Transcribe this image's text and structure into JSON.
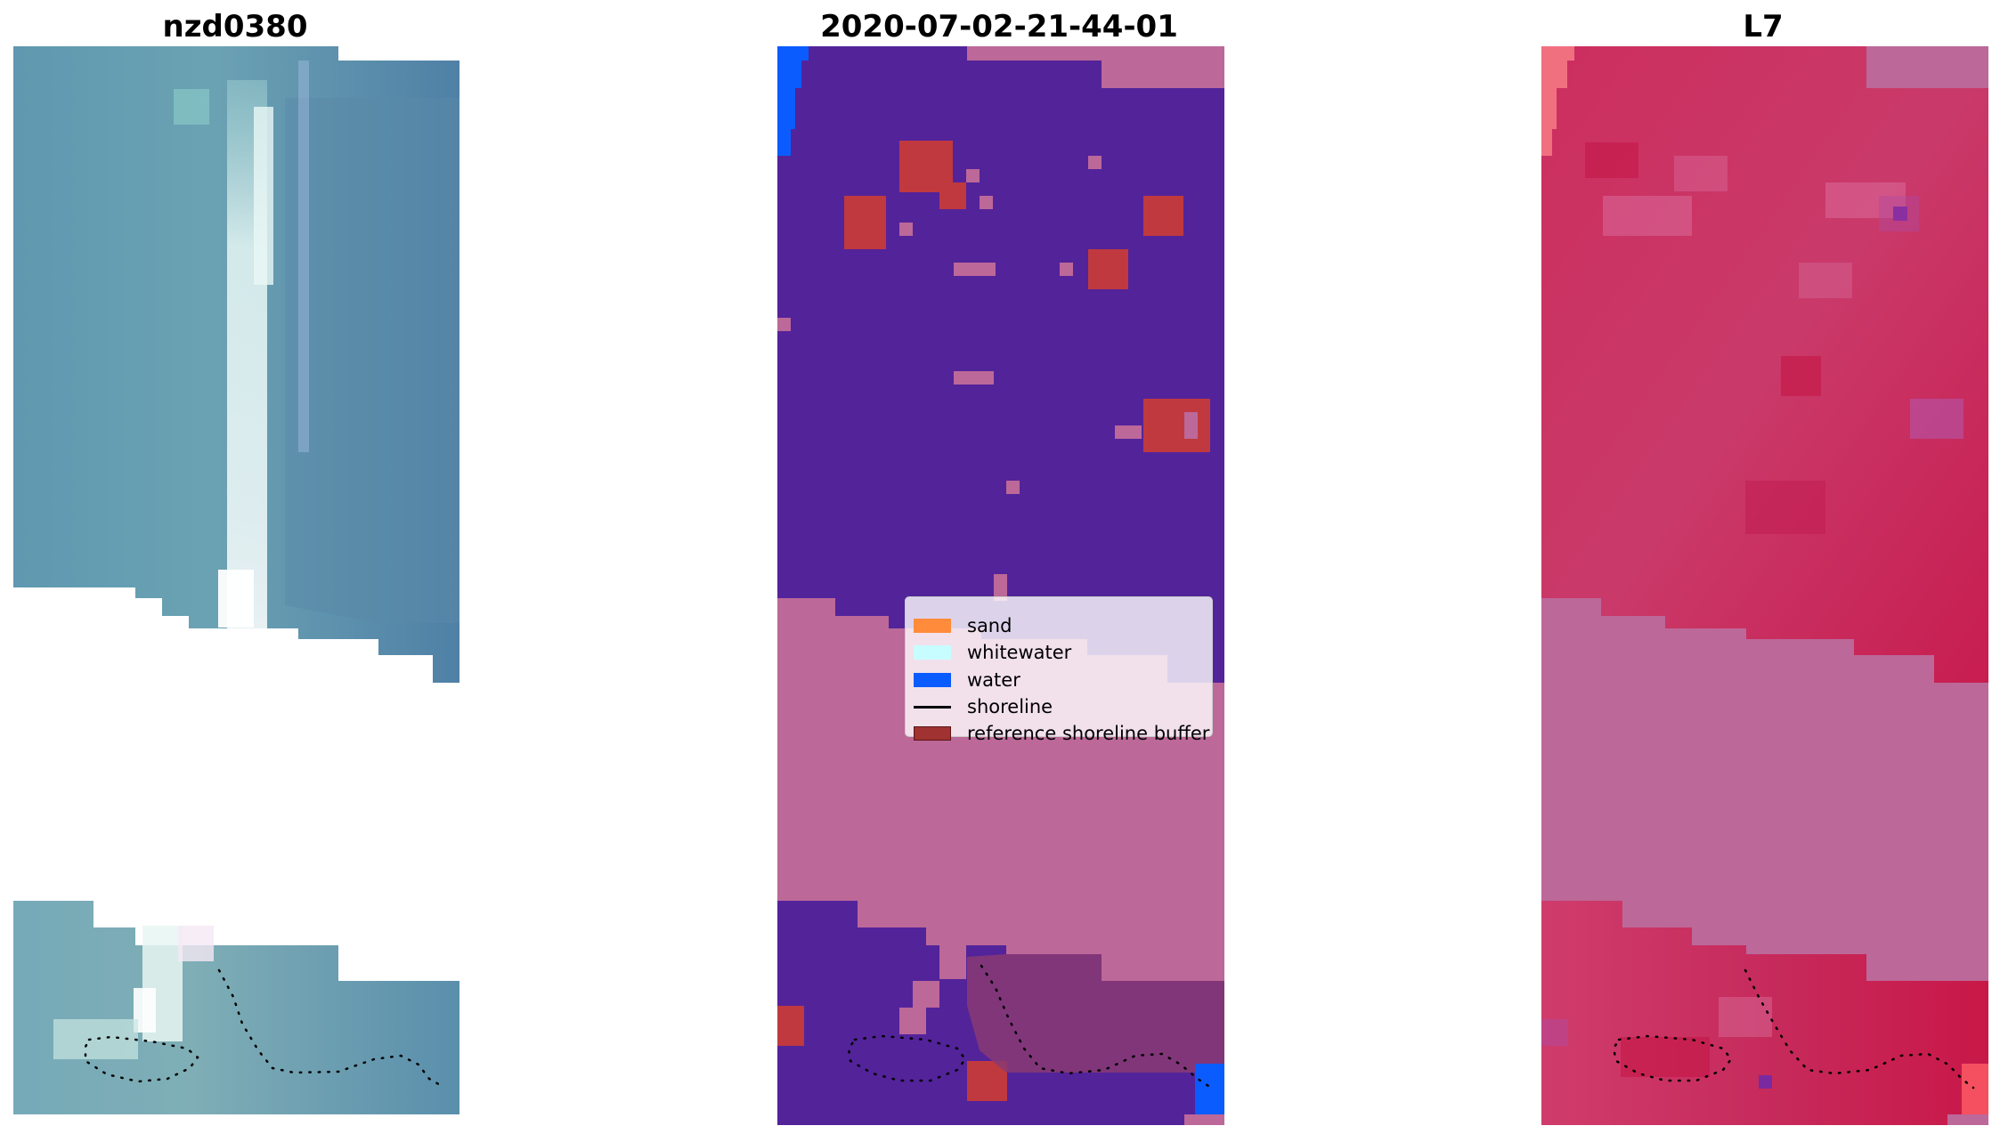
{
  "figure": {
    "panels": [
      {
        "title": "nzd0380",
        "content": "rgb-image"
      },
      {
        "title": "2020-07-02-21-44-01",
        "content": "classified-image"
      },
      {
        "title": "L7",
        "content": "index-image"
      }
    ]
  },
  "legend": {
    "items": [
      {
        "label": "sand",
        "kind": "patch",
        "color": "#ff8c3b"
      },
      {
        "label": "whitewater",
        "kind": "patch",
        "color": "#c8fdff"
      },
      {
        "label": "water",
        "kind": "patch",
        "color": "#0a5cff"
      },
      {
        "label": "shoreline",
        "kind": "line",
        "color": "#000000"
      },
      {
        "label": "reference shoreline buffer",
        "kind": "patch",
        "color": "#a03232"
      }
    ]
  },
  "colors": {
    "classified_water": "#53239a",
    "classified_nodata": "#bc6899",
    "classified_buffer": "#c0393f",
    "index_pink": "#c93a6a",
    "rgb_water": "#5b93ad"
  }
}
